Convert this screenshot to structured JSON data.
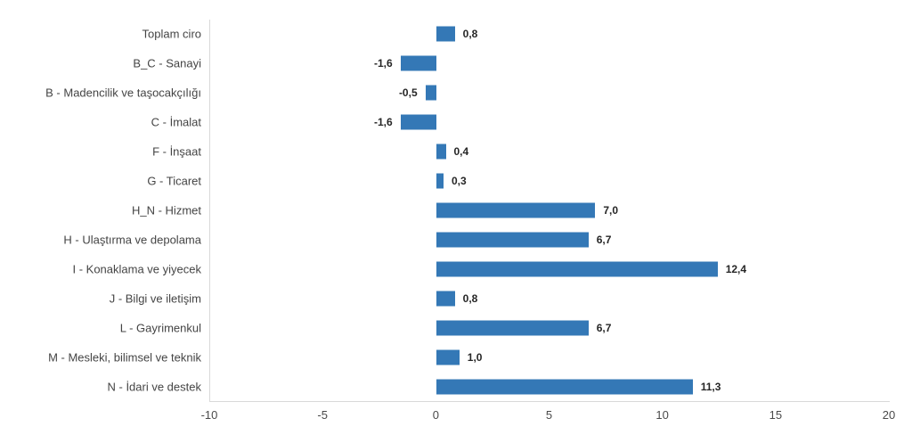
{
  "chart_data": {
    "type": "bar",
    "orientation": "horizontal",
    "title": "",
    "xlabel": "",
    "ylabel": "",
    "categories": [
      "Toplam ciro",
      "B_C - Sanayi",
      "B - Madencilik ve taşocakçılığı",
      "C - İmalat",
      "F - İnşaat",
      "G - Ticaret",
      "H_N - Hizmet",
      "H - Ulaştırma ve depolama",
      "I - Konaklama ve yiyecek",
      "J - Bilgi ve iletişim",
      "L - Gayrimenkul",
      "M - Mesleki, bilimsel ve teknik",
      "N - İdari ve destek"
    ],
    "values": [
      0.8,
      -1.6,
      -0.5,
      -1.6,
      0.4,
      0.3,
      7.0,
      6.7,
      12.4,
      0.8,
      6.7,
      1.0,
      11.3
    ],
    "value_labels": [
      "0,8",
      "-1,6",
      "-0,5",
      "-1,6",
      "0,4",
      "0,3",
      "7,0",
      "6,7",
      "12,4",
      "0,8",
      "6,7",
      "1,0",
      "11,3"
    ],
    "xlim": [
      -10,
      20
    ],
    "x_ticks": [
      -10,
      -5,
      0,
      5,
      10,
      15,
      20
    ],
    "x_tick_labels": [
      "-10",
      "-5",
      "0",
      "5",
      "10",
      "15",
      "20"
    ],
    "grid": false,
    "legend_position": "none",
    "bar_color": "#3478b6",
    "axis_line_color": "#d9d9d9",
    "category_label_color": "#444444",
    "value_label_color": "#262626",
    "tick_label_color": "#4a4a4a"
  }
}
